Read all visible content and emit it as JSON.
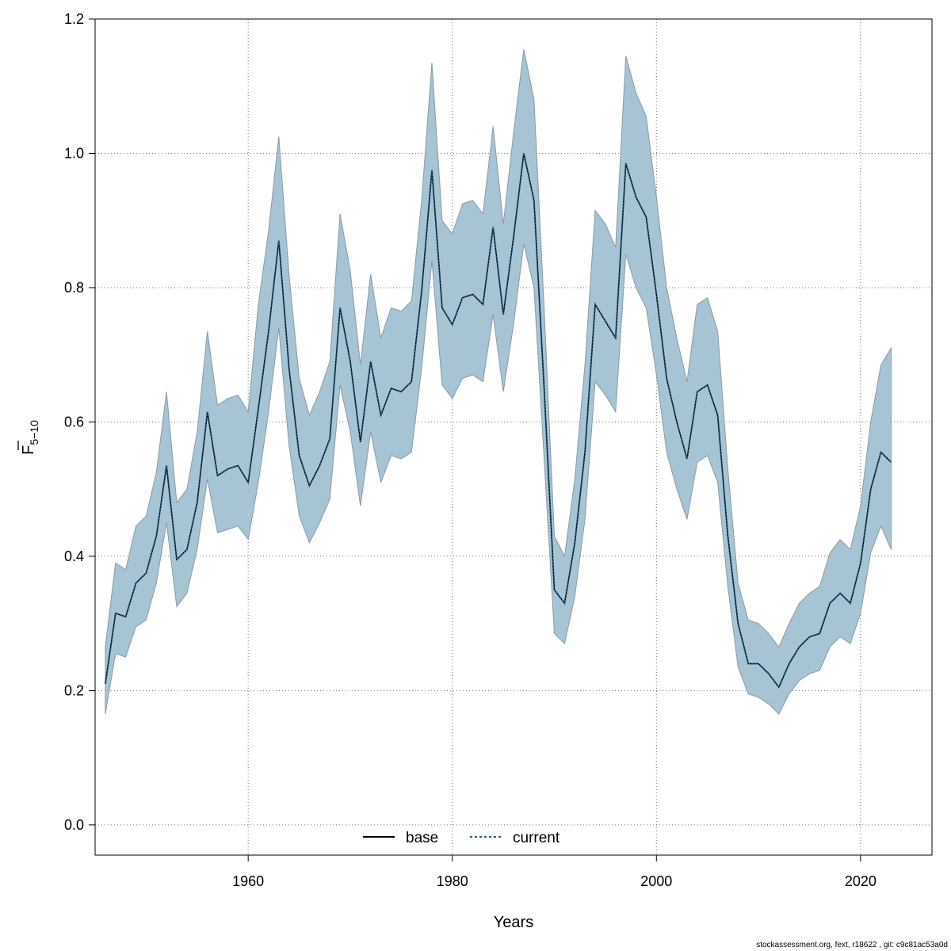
{
  "chart_data": {
    "type": "line",
    "xlabel": "Years",
    "ylabel_main": "F",
    "ylabel_sub": "5−10",
    "xlim": [
      1945,
      2027
    ],
    "ylim": [
      -0.045,
      1.2
    ],
    "x_ticks": [
      1960,
      1980,
      2000,
      2020
    ],
    "x_tick_labels": [
      "1960",
      "1980",
      "2000",
      "2020"
    ],
    "y_ticks": [
      0.0,
      0.2,
      0.4,
      0.6,
      0.8,
      1.0,
      1.2
    ],
    "y_tick_labels": [
      "0.0",
      "0.2",
      "0.4",
      "0.6",
      "0.8",
      "1.0",
      "1.2"
    ],
    "grid": true,
    "legend_position": "bottom-center",
    "colors": {
      "band": "#a6c4d4",
      "band_edge": "#8a9aa5",
      "current": "#1f5d80",
      "base": "#000000",
      "grid": "#707070"
    },
    "x": [
      1946,
      1947,
      1948,
      1949,
      1950,
      1951,
      1952,
      1953,
      1954,
      1955,
      1956,
      1957,
      1958,
      1959,
      1960,
      1961,
      1962,
      1963,
      1964,
      1965,
      1966,
      1967,
      1968,
      1969,
      1970,
      1971,
      1972,
      1973,
      1974,
      1975,
      1976,
      1977,
      1978,
      1979,
      1980,
      1981,
      1982,
      1983,
      1984,
      1985,
      1986,
      1987,
      1988,
      1989,
      1990,
      1991,
      1992,
      1993,
      1994,
      1995,
      1996,
      1997,
      1998,
      1999,
      2000,
      2001,
      2002,
      2003,
      2004,
      2005,
      2006,
      2007,
      2008,
      2009,
      2010,
      2011,
      2012,
      2013,
      2014,
      2015,
      2016,
      2017,
      2018,
      2019,
      2020,
      2021,
      2022,
      2023
    ],
    "series": [
      {
        "name": "base",
        "style": "solid",
        "values": [
          0.21,
          0.315,
          0.31,
          0.36,
          0.375,
          0.43,
          0.535,
          0.395,
          0.41,
          0.48,
          0.615,
          0.52,
          0.53,
          0.535,
          0.51,
          0.62,
          0.735,
          0.87,
          0.68,
          0.55,
          0.505,
          0.535,
          0.575,
          0.77,
          0.69,
          0.57,
          0.69,
          0.61,
          0.65,
          0.645,
          0.66,
          0.795,
          0.975,
          0.77,
          0.745,
          0.785,
          0.79,
          0.775,
          0.89,
          0.76,
          0.875,
          1.0,
          0.93,
          0.65,
          0.35,
          0.33,
          0.42,
          0.555,
          0.775,
          0.75,
          0.725,
          0.985,
          0.935,
          0.905,
          0.79,
          0.665,
          0.6,
          0.545,
          0.645,
          0.655,
          0.61,
          0.43,
          0.3,
          0.24,
          0.24,
          0.225,
          0.205,
          0.24,
          0.265,
          0.28,
          0.285,
          0.33,
          0.345,
          0.33,
          0.39,
          0.5,
          0.555,
          0.54
        ]
      },
      {
        "name": "current",
        "style": "dotted",
        "values": [
          0.21,
          0.315,
          0.31,
          0.36,
          0.375,
          0.43,
          0.535,
          0.395,
          0.41,
          0.48,
          0.615,
          0.52,
          0.53,
          0.535,
          0.51,
          0.62,
          0.735,
          0.87,
          0.68,
          0.55,
          0.505,
          0.535,
          0.575,
          0.77,
          0.69,
          0.57,
          0.69,
          0.61,
          0.65,
          0.645,
          0.66,
          0.795,
          0.975,
          0.77,
          0.745,
          0.785,
          0.79,
          0.775,
          0.89,
          0.76,
          0.875,
          1.0,
          0.93,
          0.65,
          0.35,
          0.33,
          0.42,
          0.555,
          0.775,
          0.75,
          0.725,
          0.985,
          0.935,
          0.905,
          0.79,
          0.665,
          0.6,
          0.545,
          0.645,
          0.655,
          0.61,
          0.43,
          0.3,
          0.24,
          0.24,
          0.225,
          0.205,
          0.24,
          0.265,
          0.28,
          0.285,
          0.33,
          0.345,
          0.33,
          0.39,
          0.5,
          0.555,
          0.54
        ]
      }
    ],
    "band_upper": [
      0.265,
      0.39,
      0.38,
      0.445,
      0.46,
      0.525,
      0.645,
      0.48,
      0.5,
      0.585,
      0.735,
      0.625,
      0.635,
      0.64,
      0.615,
      0.775,
      0.885,
      1.025,
      0.82,
      0.665,
      0.61,
      0.645,
      0.69,
      0.91,
      0.825,
      0.685,
      0.82,
      0.725,
      0.77,
      0.765,
      0.78,
      0.93,
      1.135,
      0.9,
      0.88,
      0.925,
      0.93,
      0.91,
      1.04,
      0.895,
      1.03,
      1.155,
      1.08,
      0.77,
      0.43,
      0.4,
      0.515,
      0.685,
      0.915,
      0.895,
      0.86,
      1.145,
      1.09,
      1.055,
      0.935,
      0.8,
      0.725,
      0.66,
      0.775,
      0.785,
      0.735,
      0.53,
      0.36,
      0.305,
      0.3,
      0.285,
      0.265,
      0.3,
      0.33,
      0.345,
      0.355,
      0.405,
      0.425,
      0.41,
      0.475,
      0.6,
      0.685,
      0.71
    ],
    "band_lower": [
      0.165,
      0.255,
      0.25,
      0.295,
      0.305,
      0.36,
      0.45,
      0.325,
      0.345,
      0.41,
      0.515,
      0.435,
      0.44,
      0.445,
      0.425,
      0.51,
      0.615,
      0.74,
      0.565,
      0.46,
      0.42,
      0.45,
      0.485,
      0.655,
      0.585,
      0.475,
      0.585,
      0.51,
      0.55,
      0.545,
      0.555,
      0.68,
      0.84,
      0.655,
      0.635,
      0.665,
      0.67,
      0.66,
      0.76,
      0.645,
      0.745,
      0.865,
      0.8,
      0.545,
      0.285,
      0.27,
      0.34,
      0.455,
      0.66,
      0.64,
      0.615,
      0.85,
      0.8,
      0.77,
      0.67,
      0.555,
      0.5,
      0.455,
      0.54,
      0.55,
      0.51,
      0.355,
      0.235,
      0.195,
      0.19,
      0.18,
      0.165,
      0.195,
      0.215,
      0.225,
      0.23,
      0.265,
      0.28,
      0.27,
      0.315,
      0.405,
      0.445,
      0.41
    ],
    "legend": [
      {
        "label": "base",
        "style": "solid"
      },
      {
        "label": "current",
        "style": "dotted"
      }
    ]
  },
  "footer_text": "stockassessment.org, fext, r18622 , git: c9c81ac53a0d"
}
